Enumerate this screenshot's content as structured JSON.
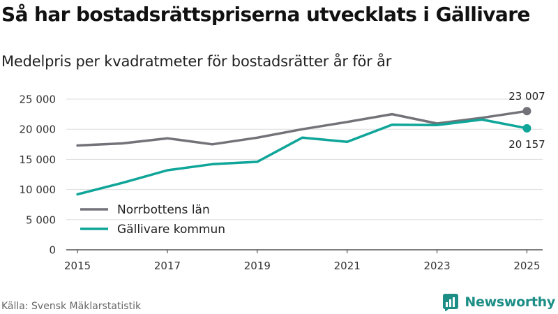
{
  "chart_data": {
    "type": "line",
    "title": "Så har bostadsrättspriserna utvecklats i Gällivare",
    "subtitle": "Medelpris per kvadratmeter för bostadsrätter år för år",
    "xlabel": "",
    "ylabel": "",
    "x": [
      2015,
      2016,
      2017,
      2018,
      2019,
      2020,
      2021,
      2022,
      2023,
      2024,
      2025
    ],
    "xticks": [
      "2015",
      "2017",
      "2019",
      "2021",
      "2023",
      "2025"
    ],
    "xlim": [
      2014.75,
      2025.35
    ],
    "ylim": [
      0,
      25000
    ],
    "yticks": [
      0,
      5000,
      10000,
      15000,
      20000,
      25000
    ],
    "ytick_labels": [
      "0",
      "5 000",
      "10 000",
      "15 000",
      "20 000",
      "25 000"
    ],
    "grid": true,
    "legend_position": "bottom-left",
    "series": [
      {
        "name": "Norrbottens län",
        "color": "#737278",
        "values": [
          17300,
          17650,
          18500,
          17500,
          18600,
          20000,
          21200,
          22500,
          20950,
          21900,
          23007
        ],
        "end_label": "23 007"
      },
      {
        "name": "Gällivare kommun",
        "color": "#0fa599",
        "values": [
          9200,
          11100,
          13200,
          14200,
          14600,
          18600,
          17900,
          20750,
          20700,
          21600,
          20157
        ],
        "end_label": "20 157"
      }
    ]
  },
  "source": "Källa: Svensk Mäklarstatistik",
  "brand": {
    "name": "Newsworthy",
    "color": "#1c8e86"
  }
}
